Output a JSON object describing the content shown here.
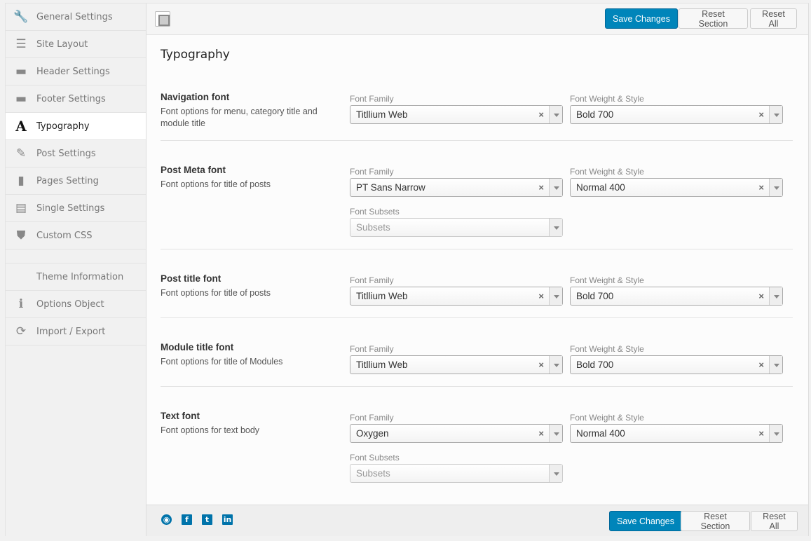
{
  "sidebar": {
    "items": [
      {
        "label": "General Settings",
        "icon": "wrench-icon",
        "glyph": "🔧"
      },
      {
        "label": "Site Layout",
        "icon": "layout-icon",
        "glyph": "☰"
      },
      {
        "label": "Header Settings",
        "icon": "header-icon",
        "glyph": "▬"
      },
      {
        "label": "Footer Settings",
        "icon": "footer-icon",
        "glyph": "▬"
      },
      {
        "label": "Typography",
        "icon": "font-icon",
        "glyph": "A",
        "active": true
      },
      {
        "label": "Post Settings",
        "icon": "edit-icon",
        "glyph": "✎"
      },
      {
        "label": "Pages Setting",
        "icon": "book-icon",
        "glyph": "▮"
      },
      {
        "label": "Single Settings",
        "icon": "clipboard-icon",
        "glyph": "▤"
      },
      {
        "label": "Custom CSS",
        "icon": "css-icon",
        "glyph": "⛊"
      }
    ],
    "extra": [
      {
        "label": "Theme Information",
        "icon": "",
        "glyph": ""
      },
      {
        "label": "Options Object",
        "icon": "info-icon",
        "glyph": "ℹ"
      },
      {
        "label": "Import / Export",
        "icon": "refresh-icon",
        "glyph": "⟳"
      }
    ]
  },
  "toolbar": {
    "save": "Save Changes",
    "reset_section": "Reset Section",
    "reset_all": "Reset All"
  },
  "page_title": "Typography",
  "sections": [
    {
      "title": "Navigation font",
      "desc": "Font options for menu, category title and module title",
      "family_label": "Font Family",
      "family": "Titllium Web",
      "weight_label": "Font Weight & Style",
      "weight": "Bold 700"
    },
    {
      "title": "Post Meta font",
      "desc": "Font options for title of posts",
      "family_label": "Font Family",
      "family": "PT Sans Narrow",
      "weight_label": "Font Weight & Style",
      "weight": "Normal 400",
      "subsets_label": "Font Subsets",
      "subsets_placeholder": "Subsets"
    },
    {
      "title": "Post title font",
      "desc": "Font options for title of posts",
      "family_label": "Font Family",
      "family": "Titllium Web",
      "weight_label": "Font Weight & Style",
      "weight": "Bold 700"
    },
    {
      "title": "Module title font",
      "desc": "Font options for title of Modules",
      "family_label": "Font Family",
      "family": "Titllium Web",
      "weight_label": "Font Weight & Style",
      "weight": "Bold 700"
    },
    {
      "title": "Text font",
      "desc": "Font options for text body",
      "family_label": "Font Family",
      "family": "Oxygen",
      "weight_label": "Font Weight & Style",
      "weight": "Normal 400",
      "subsets_label": "Font Subsets",
      "subsets_placeholder": "Subsets"
    }
  ],
  "footer": {
    "social": [
      {
        "icon": "github-icon",
        "glyph": "◉"
      },
      {
        "icon": "facebook-icon",
        "glyph": "f"
      },
      {
        "icon": "twitter-icon",
        "glyph": "t"
      },
      {
        "icon": "linkedin-icon",
        "glyph": "in"
      }
    ]
  },
  "colors": {
    "primary": "#0085ba",
    "social": "#0073aa"
  }
}
